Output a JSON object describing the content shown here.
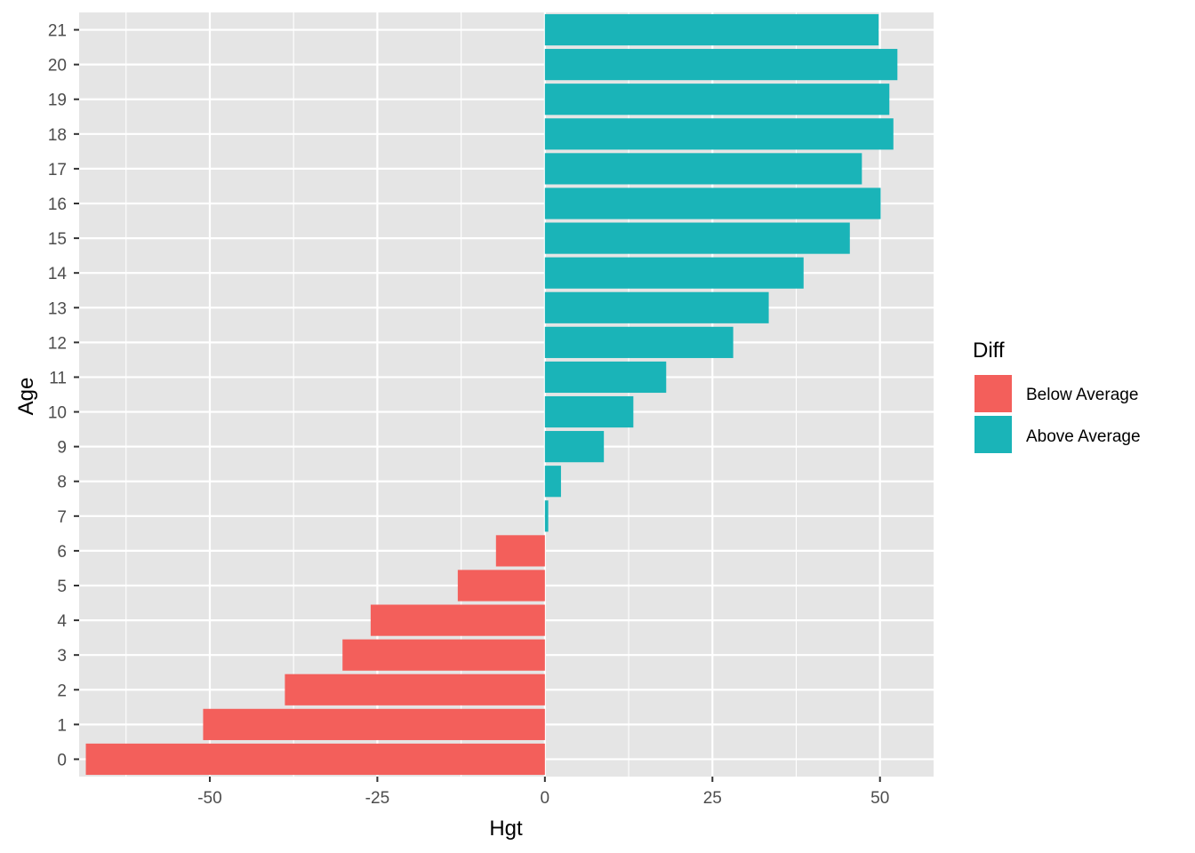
{
  "chart_data": {
    "type": "bar",
    "orientation": "horizontal",
    "xlabel": "Hgt",
    "ylabel": "Age",
    "xlim": [
      -69.5,
      58
    ],
    "x_ticks": [
      -50,
      -25,
      0,
      25,
      50
    ],
    "x_tick_labels": [
      "-50",
      "-25",
      "0",
      "25",
      "50"
    ],
    "categories": [
      "0",
      "1",
      "2",
      "3",
      "4",
      "5",
      "6",
      "7",
      "8",
      "9",
      "10",
      "11",
      "12",
      "13",
      "14",
      "15",
      "16",
      "17",
      "18",
      "19",
      "20",
      "21"
    ],
    "values": [
      -68.5,
      -51,
      -38.8,
      -30.2,
      -26,
      -13,
      -7.3,
      0.5,
      2.4,
      8.8,
      13.2,
      18.1,
      28.1,
      33.4,
      38.6,
      45.5,
      50.1,
      47.3,
      52,
      51.4,
      52.6,
      49.8
    ],
    "grid": true,
    "legend": {
      "title": "Diff",
      "position": "right",
      "entries": [
        {
          "label": "Below Average",
          "color": "#F8766D"
        },
        {
          "label": "Above Average",
          "color": "#00BFC4"
        }
      ]
    },
    "colors": {
      "below": "#F35F5B",
      "above": "#1AB4B8",
      "panel": "#E5E5E5",
      "grid": "#FFFFFF"
    }
  }
}
